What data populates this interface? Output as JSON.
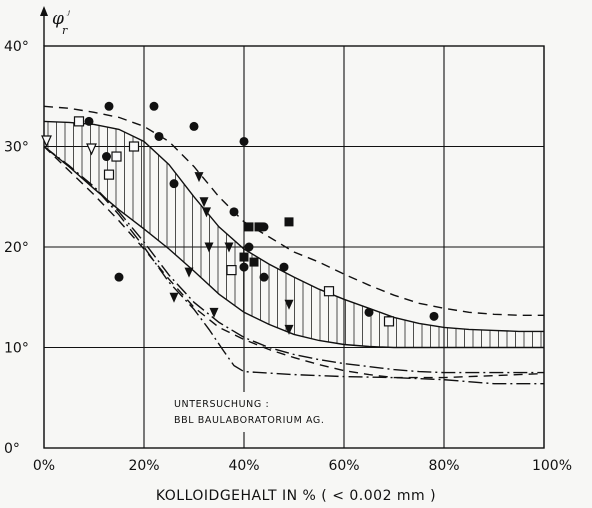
{
  "chart_data": {
    "type": "scatter",
    "title": "",
    "xlabel": "KOLLOIDGEHALT  IN % ( < 0.002 mm )",
    "ylabel_main": "φ",
    "ylabel_sub": "r",
    "xlim": [
      0,
      100
    ],
    "ylim": [
      0,
      40
    ],
    "x_ticks": [
      {
        "value": 0,
        "label": "0%"
      },
      {
        "value": 20,
        "label": "20%"
      },
      {
        "value": 40,
        "label": "40%"
      },
      {
        "value": 60,
        "label": "60%"
      },
      {
        "value": 80,
        "label": "80%"
      },
      {
        "value": 100,
        "label": "100%"
      }
    ],
    "y_ticks": [
      {
        "value": 0,
        "label": "0°"
      },
      {
        "value": 10,
        "label": "10°"
      },
      {
        "value": 20,
        "label": "20°"
      },
      {
        "value": 30,
        "label": "30°"
      },
      {
        "value": 40,
        "label": "40°"
      }
    ],
    "grid": true,
    "annotation": [
      "UNTERSUCHUNG :",
      "BBL  BAULABORATORIUM  AG."
    ],
    "series": [
      {
        "marker": "filled-circle",
        "points": [
          [
            9,
            32.5
          ],
          [
            13,
            34
          ],
          [
            12.5,
            29
          ],
          [
            15,
            17
          ],
          [
            22,
            34
          ],
          [
            23,
            31
          ],
          [
            26,
            26.3
          ],
          [
            30,
            32
          ],
          [
            38,
            23.5
          ],
          [
            40,
            30.5
          ],
          [
            40,
            18
          ],
          [
            41,
            20
          ],
          [
            44,
            17
          ],
          [
            44,
            22
          ],
          [
            48,
            18
          ],
          [
            65,
            13.5
          ],
          [
            69,
            12.7
          ],
          [
            78,
            13.1
          ]
        ]
      },
      {
        "marker": "open-square",
        "points": [
          [
            7,
            32.5
          ],
          [
            13,
            27.2
          ],
          [
            14.5,
            29
          ],
          [
            18,
            30
          ],
          [
            37.5,
            17.7
          ],
          [
            57,
            15.6
          ],
          [
            69,
            12.6
          ]
        ]
      },
      {
        "marker": "filled-square",
        "points": [
          [
            40,
            19
          ],
          [
            41,
            22
          ],
          [
            42,
            18.5
          ],
          [
            43,
            22
          ],
          [
            49,
            22.5
          ]
        ]
      },
      {
        "marker": "filled-triangle-down",
        "points": [
          [
            26,
            15
          ],
          [
            29,
            17.5
          ],
          [
            31,
            27
          ],
          [
            32,
            24.5
          ],
          [
            32.5,
            23.5
          ],
          [
            33,
            20
          ],
          [
            34,
            13.5
          ],
          [
            37,
            20
          ],
          [
            49,
            14.3
          ],
          [
            49,
            11.8
          ]
        ]
      },
      {
        "marker": "open-triangle-down",
        "points": [
          [
            0.5,
            30.6
          ],
          [
            9.5,
            29.8
          ]
        ]
      }
    ],
    "curves": [
      {
        "style": "dashed",
        "points": [
          [
            0,
            34
          ],
          [
            5,
            33.8
          ],
          [
            10,
            33.4
          ],
          [
            15,
            32.9
          ],
          [
            20,
            32
          ],
          [
            25,
            30.5
          ],
          [
            30,
            28
          ],
          [
            35,
            25
          ],
          [
            40,
            22.5
          ],
          [
            45,
            21
          ],
          [
            50,
            19.5
          ],
          [
            55,
            18.5
          ],
          [
            60,
            17.3
          ],
          [
            65,
            16.2
          ],
          [
            70,
            15.2
          ],
          [
            75,
            14.4
          ],
          [
            80,
            13.9
          ],
          [
            85,
            13.5
          ],
          [
            90,
            13.3
          ],
          [
            95,
            13.2
          ],
          [
            100,
            13.2
          ]
        ]
      },
      {
        "style": "solid",
        "points": [
          [
            0,
            32.5
          ],
          [
            5,
            32.4
          ],
          [
            10,
            32.2
          ],
          [
            15,
            31.7
          ],
          [
            20,
            30.5
          ],
          [
            25,
            28.2
          ],
          [
            30,
            25
          ],
          [
            35,
            22
          ],
          [
            40,
            19.8
          ],
          [
            45,
            18.3
          ],
          [
            50,
            17
          ],
          [
            55,
            15.8
          ],
          [
            60,
            14.8
          ],
          [
            65,
            13.9
          ],
          [
            70,
            13
          ],
          [
            75,
            12.4
          ],
          [
            80,
            12
          ],
          [
            85,
            11.8
          ],
          [
            90,
            11.7
          ],
          [
            95,
            11.6
          ],
          [
            100,
            11.6
          ]
        ]
      },
      {
        "style": "solid",
        "points": [
          [
            0,
            30
          ],
          [
            5,
            28
          ],
          [
            10,
            25.8
          ],
          [
            15,
            23.7
          ],
          [
            20,
            21.8
          ],
          [
            25,
            19.8
          ],
          [
            30,
            17.6
          ],
          [
            35,
            15.3
          ],
          [
            40,
            13.5
          ],
          [
            45,
            12.3
          ],
          [
            50,
            11.3
          ],
          [
            55,
            10.7
          ],
          [
            60,
            10.3
          ],
          [
            65,
            10.1
          ],
          [
            70,
            10
          ],
          [
            75,
            10
          ],
          [
            80,
            10
          ],
          [
            85,
            10
          ],
          [
            90,
            10
          ],
          [
            95,
            10
          ],
          [
            100,
            10
          ]
        ]
      },
      {
        "style": "dashdot",
        "points": [
          [
            0,
            30
          ],
          [
            5,
            28.1
          ],
          [
            10,
            26
          ],
          [
            15,
            23.5
          ],
          [
            20,
            20.5
          ],
          [
            25,
            17.2
          ],
          [
            30,
            14.5
          ],
          [
            35,
            12.5
          ],
          [
            40,
            11
          ],
          [
            45,
            10
          ],
          [
            50,
            9.3
          ],
          [
            55,
            8.8
          ],
          [
            60,
            8.4
          ],
          [
            65,
            8.1
          ],
          [
            70,
            7.8
          ],
          [
            75,
            7.6
          ],
          [
            80,
            7.5
          ],
          [
            85,
            7.5
          ],
          [
            90,
            7.5
          ],
          [
            95,
            7.5
          ],
          [
            100,
            7.5
          ]
        ]
      },
      {
        "style": "dashdot",
        "points": [
          [
            0,
            30
          ],
          [
            5,
            28
          ],
          [
            10,
            26
          ],
          [
            15,
            23.2
          ],
          [
            20,
            20
          ],
          [
            25,
            16.5
          ],
          [
            30,
            13.8
          ],
          [
            33,
            11.8
          ],
          [
            36,
            9.6
          ],
          [
            38,
            8.2
          ],
          [
            40,
            7.6
          ],
          [
            50,
            7.3
          ],
          [
            60,
            7.1
          ],
          [
            70,
            7
          ],
          [
            80,
            6.8
          ],
          [
            90,
            6.4
          ],
          [
            95,
            6.4
          ],
          [
            100,
            6.4
          ]
        ]
      },
      {
        "style": "dashed",
        "points": [
          [
            0,
            30
          ],
          [
            5,
            27.6
          ],
          [
            10,
            25.2
          ],
          [
            15,
            22.6
          ],
          [
            20,
            19.8
          ],
          [
            25,
            16.8
          ],
          [
            30,
            14
          ],
          [
            35,
            12
          ],
          [
            40,
            10.8
          ],
          [
            45,
            9.8
          ],
          [
            50,
            9
          ],
          [
            55,
            8.3
          ],
          [
            60,
            7.7
          ],
          [
            65,
            7.3
          ],
          [
            70,
            7
          ],
          [
            75,
            7
          ],
          [
            80,
            7
          ],
          [
            85,
            7.1
          ],
          [
            90,
            7.2
          ],
          [
            95,
            7.3
          ],
          [
            100,
            7.4
          ]
        ]
      }
    ],
    "hatched_band": {
      "upper_curve_index": 1,
      "lower_curve_index": 2
    }
  }
}
